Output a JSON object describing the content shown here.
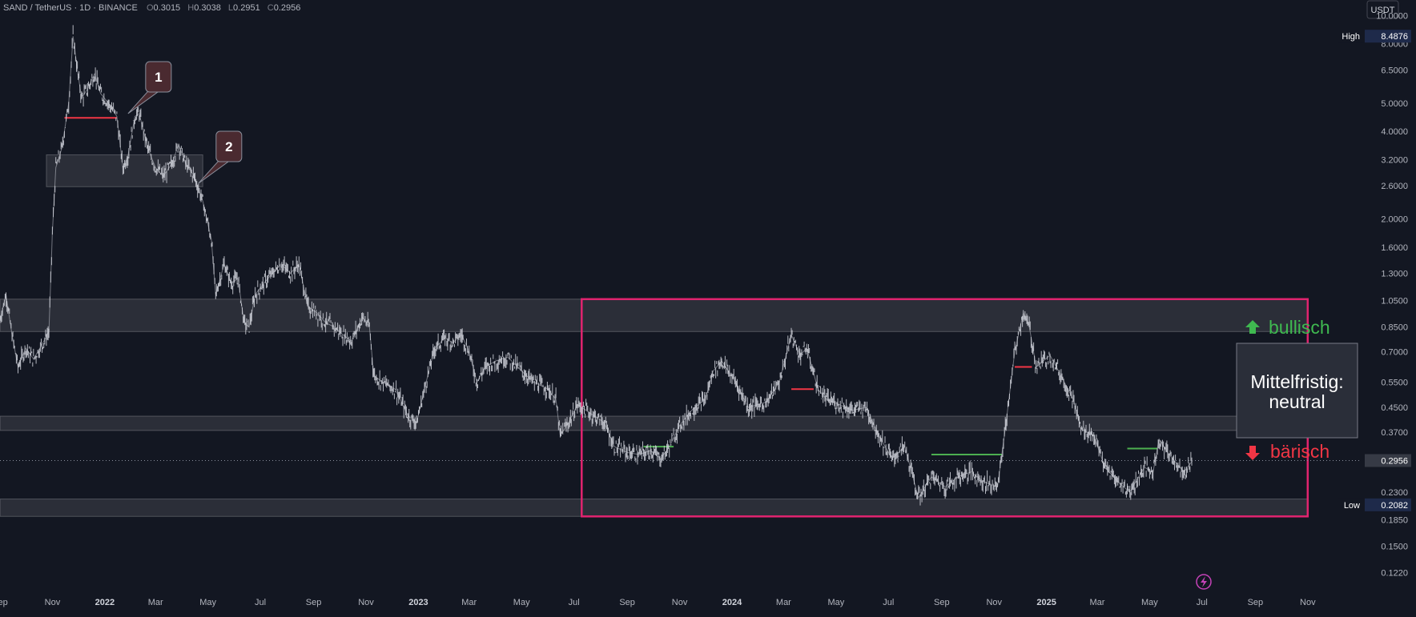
{
  "header": {
    "symbol": "SAND / TetherUS · 1D · BINANCE",
    "ohlc": [
      {
        "label": "O",
        "value": "0.3015"
      },
      {
        "label": "H",
        "value": "0.3038"
      },
      {
        "label": "L",
        "value": "0.2951"
      },
      {
        "label": "C",
        "value": "0.2956"
      }
    ]
  },
  "currency_button": "USDT",
  "colors": {
    "background": "#131722",
    "price": "#d1d4dc",
    "axis_text": "#b2b5be",
    "box": "#e0246f",
    "zone_fill": "rgba(255,255,255,0.10)",
    "zone_stroke": "rgba(255,255,255,0.22)",
    "red_level": "#f23645",
    "green_level": "#4caf50",
    "bull": "#3fb950",
    "bear": "#f23645",
    "callout": "#4a2a30"
  },
  "chart_data": {
    "type": "line",
    "scale": "log",
    "ylim": [
      0.103,
      11.3
    ],
    "x_range": [
      "2021-09-01",
      "2025-12-15"
    ],
    "grid": false,
    "y_ticks": [
      "10.0000",
      "8.0000",
      "6.5000",
      "5.0000",
      "4.0000",
      "3.2000",
      "2.6000",
      "2.0000",
      "1.6000",
      "1.3000",
      "1.0500",
      "0.8500",
      "0.7000",
      "0.5500",
      "0.4500",
      "0.3700",
      "0.2300",
      "0.1850",
      "0.1500",
      "0.1220"
    ],
    "x_ticks": [
      {
        "label": "Sep",
        "date": "2021-09-01",
        "bold": false
      },
      {
        "label": "Nov",
        "date": "2021-11-01",
        "bold": false
      },
      {
        "label": "2022",
        "date": "2022-01-01",
        "bold": true
      },
      {
        "label": "Mar",
        "date": "2022-03-01",
        "bold": false
      },
      {
        "label": "May",
        "date": "2022-05-01",
        "bold": false
      },
      {
        "label": "Jul",
        "date": "2022-07-01",
        "bold": false
      },
      {
        "label": "Sep",
        "date": "2022-09-01",
        "bold": false
      },
      {
        "label": "Nov",
        "date": "2022-11-01",
        "bold": false
      },
      {
        "label": "2023",
        "date": "2023-01-01",
        "bold": true
      },
      {
        "label": "Mar",
        "date": "2023-03-01",
        "bold": false
      },
      {
        "label": "May",
        "date": "2023-05-01",
        "bold": false
      },
      {
        "label": "Jul",
        "date": "2023-07-01",
        "bold": false
      },
      {
        "label": "Sep",
        "date": "2023-09-01",
        "bold": false
      },
      {
        "label": "Nov",
        "date": "2023-11-01",
        "bold": false
      },
      {
        "label": "2024",
        "date": "2024-01-01",
        "bold": true
      },
      {
        "label": "Mar",
        "date": "2024-03-01",
        "bold": false
      },
      {
        "label": "May",
        "date": "2024-05-01",
        "bold": false
      },
      {
        "label": "Jul",
        "date": "2024-07-01",
        "bold": false
      },
      {
        "label": "Sep",
        "date": "2024-09-01",
        "bold": false
      },
      {
        "label": "Nov",
        "date": "2024-11-01",
        "bold": false
      },
      {
        "label": "2025",
        "date": "2025-01-01",
        "bold": true
      },
      {
        "label": "Mar",
        "date": "2025-03-01",
        "bold": false
      },
      {
        "label": "May",
        "date": "2025-05-01",
        "bold": false
      },
      {
        "label": "Jul",
        "date": "2025-07-01",
        "bold": false
      },
      {
        "label": "Sep",
        "date": "2025-09-01",
        "bold": false
      },
      {
        "label": "Nov",
        "date": "2025-11-01",
        "bold": false
      }
    ],
    "series": [
      {
        "values": [
          [
            "2021-09-01",
            0.9
          ],
          [
            "2021-09-08",
            1.1
          ],
          [
            "2021-09-15",
            0.8
          ],
          [
            "2021-09-22",
            0.62
          ],
          [
            "2021-10-01",
            0.72
          ],
          [
            "2021-10-10",
            0.66
          ],
          [
            "2021-10-20",
            0.74
          ],
          [
            "2021-10-28",
            0.82
          ],
          [
            "2021-11-01",
            1.8
          ],
          [
            "2021-11-05",
            3.0
          ],
          [
            "2021-11-12",
            3.5
          ],
          [
            "2021-11-20",
            5.0
          ],
          [
            "2021-11-25",
            8.48
          ],
          [
            "2021-11-30",
            6.5
          ],
          [
            "2021-12-05",
            5.2
          ],
          [
            "2021-12-12",
            5.6
          ],
          [
            "2021-12-20",
            6.3
          ],
          [
            "2021-12-27",
            5.4
          ],
          [
            "2022-01-05",
            5.0
          ],
          [
            "2022-01-15",
            4.5
          ],
          [
            "2022-01-22",
            3.0
          ],
          [
            "2022-01-28",
            3.3
          ],
          [
            "2022-02-05",
            4.5
          ],
          [
            "2022-02-10",
            4.6
          ],
          [
            "2022-02-20",
            3.5
          ],
          [
            "2022-03-01",
            3.0
          ],
          [
            "2022-03-10",
            2.8
          ],
          [
            "2022-03-20",
            3.1
          ],
          [
            "2022-03-28",
            3.6
          ],
          [
            "2022-04-05",
            3.1
          ],
          [
            "2022-04-15",
            2.8
          ],
          [
            "2022-04-25",
            2.3
          ],
          [
            "2022-05-05",
            1.7
          ],
          [
            "2022-05-10",
            1.1
          ],
          [
            "2022-05-20",
            1.4
          ],
          [
            "2022-05-28",
            1.2
          ],
          [
            "2022-06-05",
            1.25
          ],
          [
            "2022-06-12",
            0.88
          ],
          [
            "2022-06-18",
            0.85
          ],
          [
            "2022-06-25",
            1.1
          ],
          [
            "2022-07-05",
            1.2
          ],
          [
            "2022-07-15",
            1.3
          ],
          [
            "2022-07-25",
            1.4
          ],
          [
            "2022-08-05",
            1.3
          ],
          [
            "2022-08-15",
            1.4
          ],
          [
            "2022-08-25",
            1.0
          ],
          [
            "2022-09-05",
            0.95
          ],
          [
            "2022-09-15",
            0.88
          ],
          [
            "2022-09-25",
            0.85
          ],
          [
            "2022-10-05",
            0.8
          ],
          [
            "2022-10-15",
            0.76
          ],
          [
            "2022-10-28",
            0.92
          ],
          [
            "2022-11-05",
            0.85
          ],
          [
            "2022-11-10",
            0.58
          ],
          [
            "2022-11-20",
            0.55
          ],
          [
            "2022-12-05",
            0.52
          ],
          [
            "2022-12-20",
            0.42
          ],
          [
            "2022-12-30",
            0.4
          ],
          [
            "2023-01-10",
            0.55
          ],
          [
            "2023-01-20",
            0.72
          ],
          [
            "2023-02-01",
            0.78
          ],
          [
            "2023-02-10",
            0.75
          ],
          [
            "2023-02-20",
            0.8
          ],
          [
            "2023-03-01",
            0.7
          ],
          [
            "2023-03-10",
            0.55
          ],
          [
            "2023-03-20",
            0.62
          ],
          [
            "2023-04-01",
            0.65
          ],
          [
            "2023-04-15",
            0.67
          ],
          [
            "2023-05-01",
            0.6
          ],
          [
            "2023-05-15",
            0.55
          ],
          [
            "2023-06-01",
            0.52
          ],
          [
            "2023-06-10",
            0.48
          ],
          [
            "2023-06-15",
            0.36
          ],
          [
            "2023-06-25",
            0.4
          ],
          [
            "2023-07-05",
            0.46
          ],
          [
            "2023-07-15",
            0.44
          ],
          [
            "2023-07-25",
            0.42
          ],
          [
            "2023-08-05",
            0.4
          ],
          [
            "2023-08-17",
            0.33
          ],
          [
            "2023-09-01",
            0.315
          ],
          [
            "2023-09-15",
            0.31
          ],
          [
            "2023-09-28",
            0.32
          ],
          [
            "2023-10-10",
            0.3
          ],
          [
            "2023-10-20",
            0.33
          ],
          [
            "2023-11-01",
            0.39
          ],
          [
            "2023-11-15",
            0.44
          ],
          [
            "2023-12-01",
            0.48
          ],
          [
            "2023-12-10",
            0.6
          ],
          [
            "2023-12-20",
            0.65
          ],
          [
            "2024-01-05",
            0.55
          ],
          [
            "2024-01-20",
            0.45
          ],
          [
            "2024-02-10",
            0.47
          ],
          [
            "2024-02-25",
            0.55
          ],
          [
            "2024-03-10",
            0.8
          ],
          [
            "2024-03-20",
            0.68
          ],
          [
            "2024-03-28",
            0.72
          ],
          [
            "2024-04-10",
            0.52
          ],
          [
            "2024-04-20",
            0.48
          ],
          [
            "2024-05-05",
            0.46
          ],
          [
            "2024-05-20",
            0.44
          ],
          [
            "2024-06-05",
            0.45
          ],
          [
            "2024-06-20",
            0.36
          ],
          [
            "2024-07-05",
            0.3
          ],
          [
            "2024-07-20",
            0.33
          ],
          [
            "2024-08-05",
            0.22
          ],
          [
            "2024-08-20",
            0.26
          ],
          [
            "2024-09-05",
            0.24
          ],
          [
            "2024-09-20",
            0.26
          ],
          [
            "2024-10-05",
            0.27
          ],
          [
            "2024-10-20",
            0.25
          ],
          [
            "2024-11-05",
            0.24
          ],
          [
            "2024-11-15",
            0.4
          ],
          [
            "2024-11-25",
            0.7
          ],
          [
            "2024-12-05",
            0.95
          ],
          [
            "2024-12-12",
            0.85
          ],
          [
            "2024-12-20",
            0.62
          ],
          [
            "2025-01-05",
            0.68
          ],
          [
            "2025-01-15",
            0.6
          ],
          [
            "2025-02-01",
            0.48
          ],
          [
            "2025-02-10",
            0.38
          ],
          [
            "2025-02-25",
            0.36
          ],
          [
            "2025-03-10",
            0.28
          ],
          [
            "2025-03-25",
            0.25
          ],
          [
            "2025-04-08",
            0.23
          ],
          [
            "2025-04-15",
            0.25
          ],
          [
            "2025-04-25",
            0.28
          ],
          [
            "2025-05-05",
            0.27
          ],
          [
            "2025-05-12",
            0.35
          ],
          [
            "2025-05-20",
            0.32
          ],
          [
            "2025-06-01",
            0.29
          ],
          [
            "2025-06-10",
            0.27
          ],
          [
            "2025-06-20",
            0.2956
          ]
        ]
      }
    ],
    "zones": [
      {
        "date_from": "2021-09-01",
        "date_to": "2025-11-01",
        "price_low": 0.82,
        "price_high": 1.06
      },
      {
        "date_from": "2021-09-01",
        "date_to": "2025-11-01",
        "price_low": 0.375,
        "price_high": 0.42
      },
      {
        "date_from": "2021-09-01",
        "date_to": "2025-11-01",
        "price_low": 0.19,
        "price_high": 0.218
      },
      {
        "date_from": "2021-10-25",
        "date_to": "2022-04-25",
        "price_low": 2.58,
        "price_high": 3.32
      }
    ],
    "range_box": {
      "date_from": "2023-07-10",
      "date_to": "2025-11-01",
      "price_low": 0.19,
      "price_high": 1.06
    },
    "levels": [
      {
        "color": "red",
        "date_from": "2021-11-15",
        "date_to": "2022-01-15",
        "price": 4.45
      },
      {
        "color": "red",
        "date_from": "2024-03-10",
        "date_to": "2024-04-05",
        "price": 0.52
      },
      {
        "color": "red",
        "date_from": "2024-11-25",
        "date_to": "2024-12-15",
        "price": 0.62
      },
      {
        "color": "green",
        "date_from": "2023-09-20",
        "date_to": "2023-10-25",
        "price": 0.33
      },
      {
        "color": "green",
        "date_from": "2024-08-20",
        "date_to": "2024-11-10",
        "price": 0.31
      },
      {
        "color": "green",
        "date_from": "2025-04-05",
        "date_to": "2025-05-10",
        "price": 0.325
      }
    ],
    "callouts": [
      {
        "label": "1",
        "date": "2022-01-28",
        "price": 4.6
      },
      {
        "label": "2",
        "date": "2022-04-20",
        "price": 2.65
      }
    ],
    "current_price": {
      "label": "0.2956",
      "value": 0.2956
    },
    "high_marker": {
      "label": "High",
      "value": "8.4876",
      "price": 8.4876
    },
    "low_marker": {
      "label": "Low",
      "value": "0.2082",
      "price": 0.2082
    }
  },
  "annotations": {
    "bullish": "bullisch",
    "bearish": "bärisch",
    "outlook_line1": "Mittelfristig:",
    "outlook_line2": "neutral"
  },
  "lightning_icon": "lightning-icon"
}
